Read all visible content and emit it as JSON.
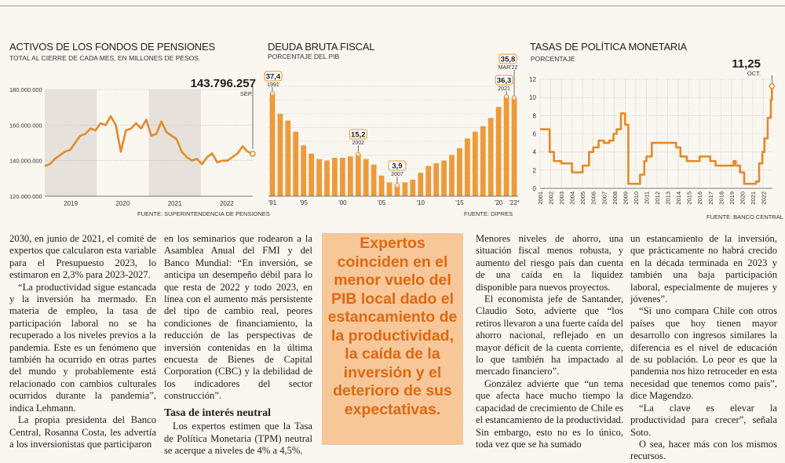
{
  "charts": {
    "pension": {
      "title": "ACTIVOS DE LOS FONDOS DE PENSIONES",
      "subtitle": "TOTAL  AL CIERRE DE CADA MES, EN MILLONES DE PESOS.",
      "source": "FUENTE: SUPERINTENDENCIA DE PENSIONES",
      "callout_value": "143.796.257",
      "callout_label": "SEP."
    },
    "debt": {
      "title": "DEUDA BRUTA FISCAL",
      "subtitle": "PORCENTAJE DEL PIB",
      "source": "FUENTE: DIPRES"
    },
    "rate": {
      "title": "TASAS DE POLÍTICA MONETARIA",
      "subtitle": "PORCENTAJE",
      "source": "FUENTE: BANCO CENTRAL",
      "callout_value": "11,25",
      "callout_label": "OCT."
    }
  },
  "chart_data": [
    {
      "type": "line",
      "title": "ACTIVOS DE LOS FONDOS DE PENSIONES",
      "ylabel": "Millones de pesos",
      "ylim": [
        120000000,
        180000000
      ],
      "yticks": [
        120000000,
        140000000,
        160000000,
        180000000
      ],
      "ytick_labels": [
        "120.000.000",
        "140.000.000",
        "160.000.000",
        "180.000.000"
      ],
      "xtick_labels": [
        "2019",
        "2020",
        "2021",
        "2022"
      ],
      "x_start": 2018.75,
      "x_end": 2022.75,
      "shaded": [
        [
          2018.75,
          2019.75
        ],
        [
          2020.75,
          2021.75
        ]
      ],
      "values": [
        137000000,
        138000000,
        141000000,
        143000000,
        145000000,
        146000000,
        150000000,
        154000000,
        155000000,
        158000000,
        157000000,
        161000000,
        160000000,
        165000000,
        160000000,
        145000000,
        157000000,
        158000000,
        161000000,
        158000000,
        163000000,
        154000000,
        155000000,
        162000000,
        156000000,
        154000000,
        152000000,
        145000000,
        142000000,
        140000000,
        141000000,
        138000000,
        142000000,
        144000000,
        139000000,
        140000000,
        140000000,
        142000000,
        144000000,
        148000000,
        145000000,
        143796257
      ],
      "annotation": {
        "value": "143.796.257",
        "label": "SEP."
      }
    },
    {
      "type": "bar",
      "title": "DEUDA BRUTA FISCAL",
      "ylabel": "Porcentaje del PIB",
      "ylim": [
        0,
        40
      ],
      "categories": [
        "1991",
        "1992",
        "1993",
        "1994",
        "1995",
        "1996",
        "1997",
        "1998",
        "1999",
        "2000",
        "2001",
        "2002",
        "2003",
        "2004",
        "2005",
        "2006",
        "2007",
        "2008",
        "2009",
        "2010",
        "2011",
        "2012",
        "2013",
        "2014",
        "2015",
        "2016",
        "2017",
        "2018",
        "2019",
        "2020",
        "2021",
        "2022"
      ],
      "xtick_labels": [
        "'91",
        "'95",
        "'00",
        "'05",
        "'10",
        "'15",
        "'20",
        "'22*"
      ],
      "values": [
        37.4,
        30.0,
        27.5,
        23.5,
        18.5,
        15.5,
        13.5,
        13.0,
        14.0,
        14.0,
        14.5,
        15.2,
        13.5,
        11.5,
        7.5,
        5.0,
        3.9,
        5.0,
        6.0,
        8.5,
        11.0,
        12.0,
        13.0,
        15.0,
        17.5,
        21.0,
        23.5,
        25.5,
        28.5,
        32.5,
        36.3,
        35.8
      ],
      "annotations": [
        {
          "value": "37,4",
          "label": "1991"
        },
        {
          "value": "15,2",
          "label": "2002"
        },
        {
          "value": "3,9",
          "label": "2007"
        },
        {
          "value": "36,3",
          "label": "2021"
        },
        {
          "value": "35,8",
          "label": "MAR'22"
        }
      ]
    },
    {
      "type": "line",
      "title": "TASAS DE POLÍTICA MONETARIA",
      "ylabel": "Porcentaje",
      "ylim": [
        0,
        12
      ],
      "yticks": [
        0,
        2,
        4,
        6,
        8,
        10,
        12
      ],
      "xtick_labels": [
        "2001",
        "2002",
        "2003",
        "2004",
        "2005",
        "2006",
        "2007",
        "2008",
        "2009",
        "2010",
        "2011",
        "2012",
        "2013",
        "2014",
        "2015",
        "2016",
        "2017",
        "2018",
        "2019",
        "2020",
        "2021",
        "2022"
      ],
      "x": [
        2001.0,
        2001.6,
        2001.9,
        2002.3,
        2003.0,
        2003.2,
        2004.0,
        2004.6,
        2005.0,
        2005.6,
        2006.0,
        2006.5,
        2007.0,
        2007.5,
        2007.9,
        2008.2,
        2008.6,
        2009.0,
        2009.3,
        2010.0,
        2010.4,
        2010.8,
        2011.0,
        2011.5,
        2012.0,
        2013.0,
        2013.8,
        2014.2,
        2014.8,
        2015.8,
        2016.0,
        2016.6,
        2017.0,
        2017.5,
        2018.0,
        2018.8,
        2019.2,
        2019.4,
        2019.8,
        2020.2,
        2020.4,
        2021.0,
        2021.3,
        2021.6,
        2021.9,
        2022.1,
        2022.4,
        2022.7,
        2022.8
      ],
      "y": [
        6.5,
        6.5,
        4.0,
        3.0,
        2.75,
        2.75,
        1.75,
        1.75,
        2.5,
        4.0,
        4.5,
        5.25,
        5.0,
        5.25,
        6.0,
        6.5,
        8.25,
        7.0,
        0.5,
        0.5,
        1.5,
        3.0,
        3.5,
        5.0,
        5.0,
        5.0,
        4.5,
        3.5,
        3.0,
        3.0,
        3.5,
        3.5,
        3.0,
        2.5,
        2.5,
        2.5,
        3.0,
        2.5,
        1.75,
        0.5,
        0.5,
        0.5,
        0.75,
        2.75,
        4.0,
        5.5,
        7.75,
        9.75,
        11.25
      ],
      "annotation": {
        "value": "11,25",
        "label": "OCT."
      }
    }
  ],
  "article": {
    "col1": [
      "2030, en junio de 2021, el comité de expertos que calcularon esta variable para el Presupuesto 2023, lo estimaron en 2,3% para 2023-2027.",
      "“La productividad sigue estancada y la inversión ha mermado. En materia de empleo, la tasa de participación laboral no se ha recuperado a los niveles previos a la pandemia. Este es un fenómeno que también ha ocurrido en otras partes del mundo y probablemente está relacionado con cambios culturales ocurridos durante la pandemia”, indica Lehmann.",
      "La propia presidenta del Banco Central, Rosanna Costa, les advertía a los inversionistas que participaron"
    ],
    "col2": [
      "en los seminarios que rodearon a la Asamblea Anual del FMI y del Banco Mundial: “En inversión, se anticipa un desempeño débil para lo que resta de 2022 y todo 2023, en línea con el aumento más persistente del tipo de cambio real, peores condiciones de financiamiento, la reducción de las perspectivas de inversión contenidas en la última encuesta de Bienes de Capital Corporation (CBC) y la debilidad de los indicadores del sector construcción”."
    ],
    "col2_heading": "Tasa de interés neutral",
    "col2_after": [
      "Los expertos estimen que la Tasa de Política Monetaria (TPM) neutral se acerque a niveles de 4% a 4,5%."
    ],
    "pullquote": "Expertos coinciden en el menor vuelo del PIB local dado el estancamiento de la productividad, la caída de la inversión y el deterioro de sus expectativas.",
    "col3": [
      "Menores niveles de ahorro, una situación fiscal menos robusta, y aumento del riesgo país dan cuenta de una caída en la liquidez disponible para nuevos proyectos.",
      "El economista jefe de Santander, Claudio Soto, advierte que “los retiros llevaron a una fuerte caída del ahorro nacional, reflejado en un mayor déficit de la cuenta corriente, lo que también ha impactado al mercado financiero”.",
      "González advierte que “un tema que afecta hace mucho tiempo la capacidad de crecimiento de Chile es el estancamiento de la productividad. Sin embargo, esto no es lo único, toda vez que se ha sumado"
    ],
    "col4": [
      "un estancamiento de la inversión, que prácticamente no habrá crecido en la década terminada en 2023 y también una baja participación laboral, especialmente de mujeres y jóvenes”.",
      "“Si uno compara Chile con otros países que hoy tienen mayor desarrollo con ingresos similares la diferencia es el nivel de educación de su población. Lo peor es que la pandemia nos hizo retroceder en esta necesidad que tenemos como país”, dice Magendzo.",
      "“La clave es elevar la productividad para crecer”, señala Soto.",
      "O sea, hacer más con los mismos recursos."
    ]
  },
  "colors": {
    "accent": "#e8922e",
    "bar": "#ee9a3a",
    "line": "#e48a2a",
    "shade": "#e6e1da",
    "quote_bg": "#f7c79a",
    "quote_text": "#e06810"
  }
}
